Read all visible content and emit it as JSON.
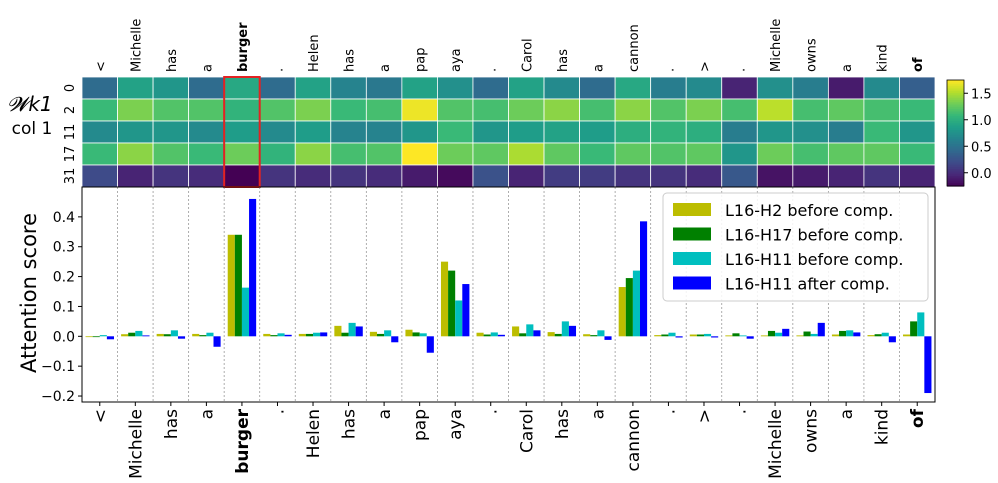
{
  "chart_data": [
    {
      "type": "heatmap",
      "ylabel_top": "𝓦k1",
      "ylabel_bottom": "col 1",
      "tokens": [
        "<",
        "Michelle",
        "has",
        "a",
        "burger",
        ".",
        "Helen",
        "has",
        "a",
        "pap",
        "aya",
        ".",
        "Carol",
        "has",
        "a",
        "cannon",
        ".",
        ">",
        ".",
        "Michelle",
        "owns",
        "a",
        "kind",
        "of"
      ],
      "bold_tokens": [
        4,
        23
      ],
      "highlight_column": 4,
      "rows": [
        "0",
        "2",
        "11",
        "17",
        "31"
      ],
      "colorbar_ticks": [
        -0.0,
        0.5,
        1.0,
        1.5
      ],
      "colorbar_tick_labels": [
        "0.0",
        "0.5",
        "1.0",
        "1.5"
      ],
      "vmin": -0.25,
      "vmax": 1.75,
      "values": [
        [
          0.45,
          0.9,
          0.8,
          0.45,
          0.95,
          0.45,
          0.9,
          0.65,
          0.55,
          0.9,
          0.75,
          0.45,
          0.9,
          0.7,
          0.45,
          0.95,
          0.6,
          0.7,
          -0.05,
          0.75,
          0.6,
          -0.1,
          0.7,
          0.35
        ],
        [
          1.1,
          1.35,
          1.2,
          1.2,
          1.05,
          1.2,
          1.35,
          1.1,
          1.15,
          1.7,
          1.2,
          1.15,
          1.3,
          1.4,
          1.15,
          1.4,
          1.2,
          1.35,
          1.15,
          1.55,
          1.15,
          1.25,
          1.15,
          1.1
        ],
        [
          0.7,
          0.8,
          0.8,
          0.7,
          0.85,
          0.7,
          0.85,
          0.65,
          0.65,
          0.8,
          1.1,
          0.8,
          0.85,
          0.9,
          0.85,
          1.0,
          1.05,
          1.0,
          0.6,
          0.8,
          0.75,
          0.6,
          1.1,
          0.8
        ],
        [
          1.1,
          1.4,
          1.2,
          1.1,
          1.3,
          1.05,
          1.4,
          1.15,
          1.2,
          1.75,
          1.3,
          1.25,
          1.5,
          1.25,
          1.1,
          1.25,
          1.2,
          1.25,
          0.8,
          1.3,
          1.15,
          1.25,
          1.25,
          1.1
        ],
        [
          0.2,
          -0.05,
          0.05,
          0.0,
          -0.25,
          0.05,
          0.0,
          0.05,
          0.0,
          -0.1,
          -0.2,
          0.25,
          -0.05,
          0.1,
          0.1,
          0.05,
          0.05,
          0.0,
          0.3,
          -0.15,
          -0.1,
          -0.05,
          0.05,
          -0.05
        ]
      ]
    },
    {
      "type": "bar",
      "ylabel": "Attention score",
      "ylim": [
        -0.22,
        0.5
      ],
      "yticks": [
        -0.2,
        -0.1,
        0.0,
        0.1,
        0.2,
        0.3,
        0.4
      ],
      "ytick_labels": [
        "−0.2",
        "−0.1",
        "0.0",
        "0.1",
        "0.2",
        "0.3",
        "0.4"
      ],
      "categories": [
        "<",
        "Michelle",
        "has",
        "a",
        "burger",
        ".",
        "Helen",
        "has",
        "a",
        "pap",
        "aya",
        ".",
        "Carol",
        "has",
        "a",
        "cannon",
        ".",
        ">",
        ".",
        "Michelle",
        "owns",
        "a",
        "kind",
        "of"
      ],
      "bold_categories": [
        4,
        23
      ],
      "legend_position": "top-right",
      "series": [
        {
          "name": "L16-H2 before comp.",
          "color": "#bcbd00",
          "values": [
            0.0,
            0.007,
            0.008,
            0.008,
            0.34,
            0.008,
            0.008,
            0.035,
            0.015,
            0.022,
            0.25,
            0.012,
            0.033,
            0.014,
            0.007,
            0.165,
            0.004,
            0.006,
            0.003,
            0.003,
            0.003,
            0.006,
            0.004,
            0.006
          ]
        },
        {
          "name": "L16-H17 before comp.",
          "color": "#008000",
          "values": [
            0.0,
            0.012,
            0.007,
            0.004,
            0.34,
            0.004,
            0.008,
            0.012,
            0.008,
            0.013,
            0.22,
            0.006,
            0.01,
            0.008,
            0.004,
            0.195,
            0.006,
            0.006,
            0.01,
            0.018,
            0.016,
            0.018,
            0.007,
            0.05
          ]
        },
        {
          "name": "L16-H11 before comp.",
          "color": "#00bfbf",
          "values": [
            0.004,
            0.018,
            0.02,
            0.012,
            0.163,
            0.01,
            0.012,
            0.045,
            0.02,
            0.01,
            0.12,
            0.013,
            0.04,
            0.05,
            0.02,
            0.22,
            0.012,
            0.008,
            0.003,
            0.012,
            0.008,
            0.02,
            0.012,
            0.08
          ]
        },
        {
          "name": "L16-H11 after comp.",
          "color": "#0000ff",
          "values": [
            -0.01,
            0.003,
            -0.008,
            -0.035,
            0.46,
            0.005,
            0.013,
            0.033,
            -0.02,
            -0.055,
            0.175,
            0.005,
            0.02,
            0.035,
            -0.012,
            0.385,
            -0.004,
            -0.004,
            -0.008,
            0.025,
            0.045,
            0.013,
            -0.02,
            -0.19
          ]
        }
      ]
    }
  ]
}
